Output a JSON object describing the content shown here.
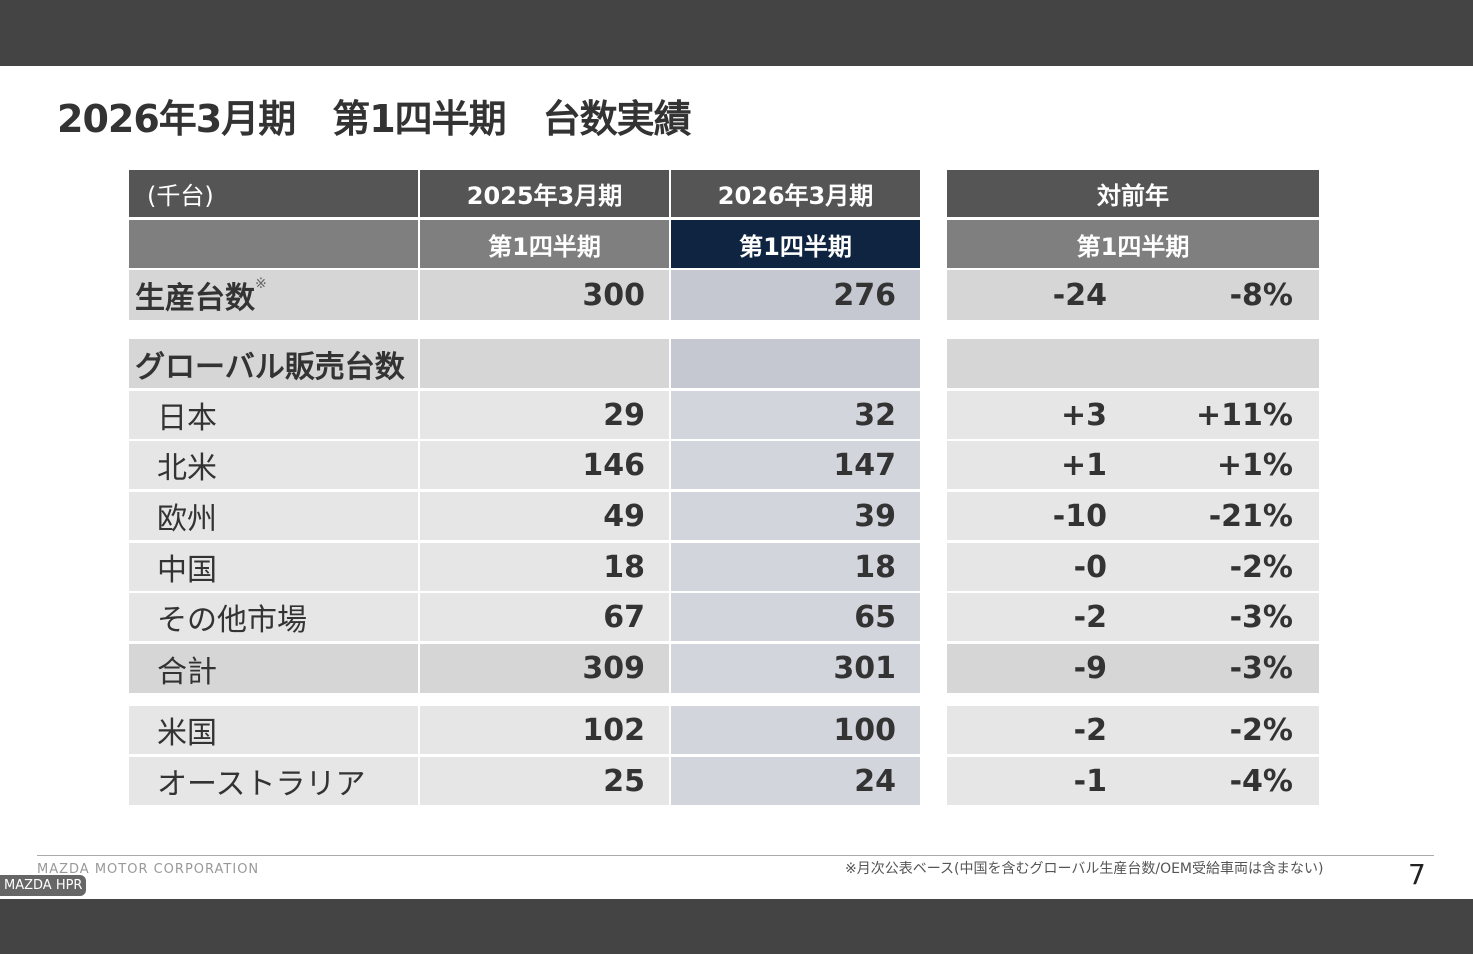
{
  "title": "2026年3月期　第1四半期　台数実績",
  "header": {
    "unit": "(千台)",
    "col1": "2025年3月期",
    "col2": "2026年3月期",
    "col3": "対前年",
    "q1": "第1四半期",
    "q2": "第1四半期",
    "q3": "第1四半期"
  },
  "production": {
    "label": "生産台数",
    "mark": "※",
    "v1": "300",
    "v2": "276",
    "diff": "-24",
    "pct": "-8%"
  },
  "global_label": "グローバル販売台数",
  "regions": [
    {
      "label": "日本",
      "v1": "29",
      "v2": "32",
      "diff": "+3",
      "pct": "+11%"
    },
    {
      "label": "北米",
      "v1": "146",
      "v2": "147",
      "diff": "+1",
      "pct": "+1%"
    },
    {
      "label": "欧州",
      "v1": "49",
      "v2": "39",
      "diff": "-10",
      "pct": "-21%"
    },
    {
      "label": "中国",
      "v1": "18",
      "v2": "18",
      "diff": "-0",
      "pct": "-2%"
    },
    {
      "label": "その他市場",
      "v1": "67",
      "v2": "65",
      "diff": "-2",
      "pct": "-3%"
    },
    {
      "label": "合計",
      "v1": "309",
      "v2": "301",
      "diff": "-9",
      "pct": "-3%"
    }
  ],
  "countries": [
    {
      "label": "米国",
      "v1": "102",
      "v2": "100",
      "diff": "-2",
      "pct": "-2%"
    },
    {
      "label": "オーストラリア",
      "v1": "25",
      "v2": "24",
      "diff": "-1",
      "pct": "-4%"
    }
  ],
  "footer": {
    "corp": "MAZDA MOTOR CORPORATION",
    "note": "※月次公表ベース(中国を含むグローバル生産台数/OEM受給車両は含まない)",
    "page": "7",
    "badge": "MAZDA  HPR"
  },
  "colors": {
    "header": "#555555",
    "subheader": "#7f7f7f",
    "highlight": "#0e2440"
  }
}
